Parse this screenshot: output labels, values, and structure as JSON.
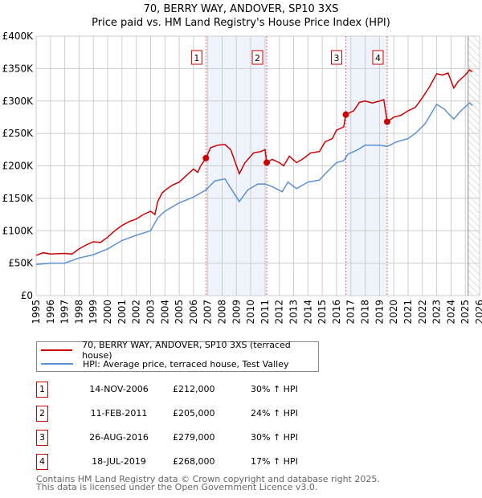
{
  "title": "70, BERRY WAY, ANDOVER, SP10 3XS",
  "subtitle": "Price paid vs. HM Land Registry's House Price Index (HPI)",
  "chart_data": {
    "type": "line",
    "xlim": [
      1995,
      2026
    ],
    "ylim": [
      0,
      400000
    ],
    "yticks": [
      0,
      50000,
      100000,
      150000,
      200000,
      250000,
      300000,
      350000,
      400000
    ],
    "ytick_labels": [
      "£0",
      "£50K",
      "£100K",
      "£150K",
      "£200K",
      "£250K",
      "£300K",
      "£350K",
      "£400K"
    ],
    "xticks": [
      1995,
      1996,
      1997,
      1998,
      1999,
      2000,
      2001,
      2002,
      2003,
      2004,
      2005,
      2006,
      2007,
      2008,
      2009,
      2010,
      2011,
      2012,
      2013,
      2014,
      2015,
      2016,
      2017,
      2018,
      2019,
      2020,
      2021,
      2022,
      2023,
      2024,
      2025,
      2026
    ],
    "grid": true,
    "forecast_from": 2025.2,
    "shaded_spans": [
      [
        2006.87,
        2011.12
      ],
      [
        2016.65,
        2019.54
      ]
    ],
    "colors": {
      "property": "#cc0000",
      "hpi": "#5b8fd4",
      "shade": "#eef3fc"
    },
    "series": [
      {
        "name": "70, BERRY WAY, ANDOVER, SP10 3XS (terraced house)",
        "key": "property",
        "x": [
          1995,
          1995.5,
          1996,
          1997,
          1997.5,
          1998,
          1998.5,
          1999,
          1999.5,
          2000,
          2000.5,
          2001,
          2001.5,
          2002,
          2002.5,
          2003,
          2003.3,
          2003.5,
          2003.8,
          2004,
          2004.5,
          2005,
          2005.5,
          2006,
          2006.3,
          2006.5,
          2006.87,
          2007.2,
          2007.7,
          2008.2,
          2008.6,
          2009.2,
          2009.6,
          2010.2,
          2010.7,
          2011.0,
          2011.12,
          2011.5,
          2012.0,
          2012.3,
          2012.7,
          2013.2,
          2013.6,
          2014.2,
          2014.8,
          2015.2,
          2015.7,
          2016.0,
          2016.5,
          2016.65,
          2017.2,
          2017.6,
          2018.0,
          2018.5,
          2019.0,
          2019.3,
          2019.54,
          2020.0,
          2020.5,
          2021.0,
          2021.5,
          2022.0,
          2022.5,
          2023.0,
          2023.4,
          2023.8,
          2024.2,
          2024.5,
          2025.0,
          2025.3,
          2025.5
        ],
        "y": [
          62000,
          66000,
          64000,
          65000,
          64000,
          72000,
          78000,
          83000,
          82000,
          90000,
          100000,
          108000,
          114000,
          118000,
          125000,
          130000,
          125000,
          145000,
          158000,
          162000,
          170000,
          175000,
          185000,
          195000,
          190000,
          200000,
          212000,
          228000,
          232000,
          233000,
          225000,
          188000,
          205000,
          220000,
          222000,
          225000,
          205000,
          210000,
          205000,
          200000,
          215000,
          205000,
          210000,
          220000,
          222000,
          237000,
          242000,
          255000,
          260000,
          279000,
          285000,
          298000,
          300000,
          297000,
          300000,
          302000,
          268000,
          275000,
          278000,
          285000,
          290000,
          305000,
          322000,
          342000,
          340000,
          343000,
          320000,
          330000,
          340000,
          348000,
          345000
        ]
      },
      {
        "name": "HPI: Average price, terraced house, Test Valley",
        "key": "hpi",
        "x": [
          1995,
          1996,
          1997,
          1998,
          1999,
          2000,
          2001,
          2002,
          2003,
          2003.5,
          2004,
          2005,
          2006,
          2006.87,
          2007.5,
          2008.2,
          2009.2,
          2009.8,
          2010.5,
          2011.0,
          2011.5,
          2012.2,
          2012.6,
          2013.2,
          2014,
          2014.8,
          2015.3,
          2016,
          2016.5,
          2016.8,
          2017.5,
          2018,
          2019,
          2019.54,
          2020.2,
          2021.0,
          2021.5,
          2022.2,
          2023.0,
          2023.5,
          2024.2,
          2024.6,
          2025.3,
          2025.5
        ],
        "y": [
          48000,
          50000,
          50000,
          58000,
          63000,
          72000,
          85000,
          93000,
          100000,
          120000,
          130000,
          143000,
          152000,
          163000,
          177000,
          180000,
          145000,
          163000,
          172000,
          172000,
          168000,
          160000,
          175000,
          165000,
          175000,
          178000,
          190000,
          205000,
          208000,
          218000,
          225000,
          232000,
          232000,
          230000,
          237000,
          242000,
          250000,
          265000,
          295000,
          288000,
          272000,
          283000,
          297000,
          293000
        ]
      }
    ],
    "markers": [
      {
        "label": "1",
        "x": 2006.87,
        "y": 212000
      },
      {
        "label": "2",
        "x": 2011.12,
        "y": 205000
      },
      {
        "label": "3",
        "x": 2016.65,
        "y": 279000
      },
      {
        "label": "4",
        "x": 2019.54,
        "y": 268000
      }
    ]
  },
  "legend": [
    "70, BERRY WAY, ANDOVER, SP10 3XS (terraced house)",
    "HPI: Average price, terraced house, Test Valley"
  ],
  "transactions": [
    {
      "num": "1",
      "date": "14-NOV-2006",
      "price": "£212,000",
      "hpi": "30% ↑ HPI"
    },
    {
      "num": "2",
      "date": "11-FEB-2011",
      "price": "£205,000",
      "hpi": "24% ↑ HPI"
    },
    {
      "num": "3",
      "date": "26-AUG-2016",
      "price": "£279,000",
      "hpi": "30% ↑ HPI"
    },
    {
      "num": "4",
      "date": "18-JUL-2019",
      "price": "£268,000",
      "hpi": "17% ↑ HPI"
    }
  ],
  "footer": [
    "Contains HM Land Registry data © Crown copyright and database right 2025.",
    "This data is licensed under the Open Government Licence v3.0."
  ]
}
